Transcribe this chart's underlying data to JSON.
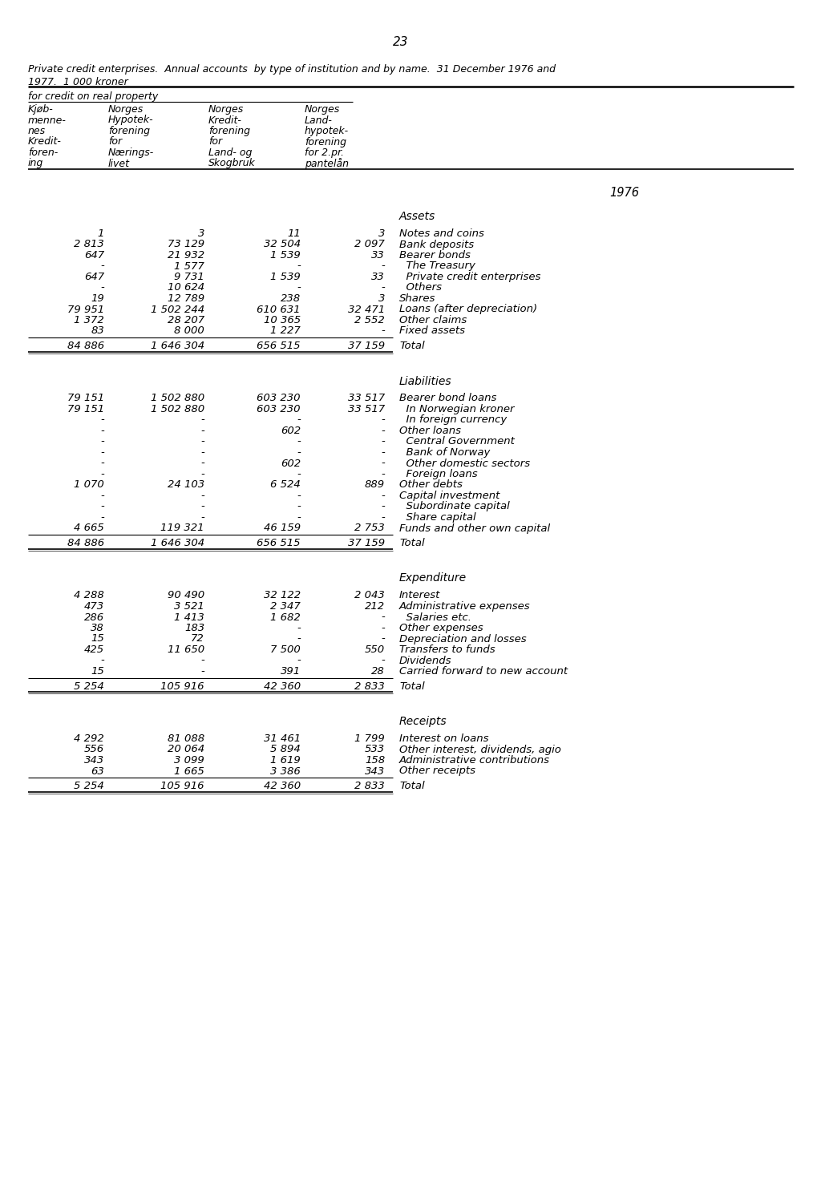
{
  "page_number": "23",
  "title_line1": "Private credit enterprises.  Annual accounts  by type of institution and by name.  31 December 1976 and",
  "title_line2": "1977.  1 000 kroner",
  "section_header": "for credit on real property",
  "col_headers": [
    [
      "Kjøb-",
      "Norges",
      "Norges",
      "Norges"
    ],
    [
      "menne-",
      "Hypotek-",
      "Kredit-",
      "Land-"
    ],
    [
      "nes",
      "forening",
      "forening",
      "hypotek-"
    ],
    [
      "Kredit-",
      "for",
      "for",
      "forening"
    ],
    [
      "foren-",
      "Nærings-",
      "Land- og",
      "for 2.pr."
    ],
    [
      "ing",
      "livet",
      "Skogbruk",
      "pantelån"
    ]
  ],
  "year_label": "1976",
  "sections": [
    {
      "title": "Assets",
      "rows": [
        {
          "cols": [
            "1",
            "3",
            "11",
            "3"
          ],
          "label": "Notes and coins"
        },
        {
          "cols": [
            "2 813",
            "73 129",
            "32 504",
            "2 097"
          ],
          "label": "Bank deposits"
        },
        {
          "cols": [
            "647",
            "21 932",
            "1 539",
            "33"
          ],
          "label": "Bearer bonds"
        },
        {
          "cols": [
            "-",
            "1 577",
            "-",
            "-"
          ],
          "label": "  The Treasury"
        },
        {
          "cols": [
            "647",
            "9 731",
            "1 539",
            "33"
          ],
          "label": "  Private credit enterprises"
        },
        {
          "cols": [
            "-",
            "10 624",
            "-",
            "-"
          ],
          "label": "  Others"
        },
        {
          "cols": [
            "19",
            "12 789",
            "238",
            "3"
          ],
          "label": "Shares"
        },
        {
          "cols": [
            "79 951",
            "1 502 244",
            "610 631",
            "32 471"
          ],
          "label": "Loans (after depreciation)"
        },
        {
          "cols": [
            "1 372",
            "28 207",
            "10 365",
            "2 552"
          ],
          "label": "Other claims"
        },
        {
          "cols": [
            "83",
            "8 000",
            "1 227",
            "-"
          ],
          "label": "Fixed assets"
        }
      ],
      "total": {
        "cols": [
          "84 886",
          "1 646 304",
          "656 515",
          "37 159"
        ],
        "label": "Total"
      }
    },
    {
      "title": "Liabilities",
      "rows": [
        {
          "cols": [
            "79 151",
            "1 502 880",
            "603 230",
            "33 517"
          ],
          "label": "Bearer bond loans"
        },
        {
          "cols": [
            "79 151",
            "1 502 880",
            "603 230",
            "33 517"
          ],
          "label": "  In Norwegian kroner"
        },
        {
          "cols": [
            "-",
            "-",
            "-",
            "-"
          ],
          "label": "  In foreign currency"
        },
        {
          "cols": [
            "-",
            "-",
            "602",
            "-"
          ],
          "label": "Other loans"
        },
        {
          "cols": [
            "-",
            "-",
            "-",
            "-"
          ],
          "label": "  Central Government"
        },
        {
          "cols": [
            "-",
            "-",
            "-",
            "-"
          ],
          "label": "  Bank of Norway"
        },
        {
          "cols": [
            "-",
            "-",
            "602",
            "-"
          ],
          "label": "  Other domestic sectors"
        },
        {
          "cols": [
            "-",
            "-",
            "-",
            "-"
          ],
          "label": "  Foreign loans"
        },
        {
          "cols": [
            "1 070",
            "24 103",
            "6 524",
            "889"
          ],
          "label": "Other debts"
        },
        {
          "cols": [
            "-",
            "-",
            "-",
            "-"
          ],
          "label": "Capital investment"
        },
        {
          "cols": [
            "-",
            "-",
            "-",
            "-"
          ],
          "label": "  Subordinate capital"
        },
        {
          "cols": [
            "-",
            "-",
            "-",
            "-"
          ],
          "label": "  Share capital"
        },
        {
          "cols": [
            "4 665",
            "119 321",
            "46 159",
            "2 753"
          ],
          "label": "Funds and other own capital"
        }
      ],
      "total": {
        "cols": [
          "84 886",
          "1 646 304",
          "656 515",
          "37 159"
        ],
        "label": "Total"
      }
    },
    {
      "title": "Expenditure",
      "rows": [
        {
          "cols": [
            "4 288",
            "90 490",
            "32 122",
            "2 043"
          ],
          "label": "Interest"
        },
        {
          "cols": [
            "473",
            "3 521",
            "2 347",
            "212"
          ],
          "label": "Administrative expenses"
        },
        {
          "cols": [
            "286",
            "1 413",
            "1 682",
            "-"
          ],
          "label": "  Salaries etc."
        },
        {
          "cols": [
            "38",
            "183",
            "-",
            "-"
          ],
          "label": "Other expenses"
        },
        {
          "cols": [
            "15",
            "72",
            "-",
            "-"
          ],
          "label": "Depreciation and losses"
        },
        {
          "cols": [
            "425",
            "11 650",
            "7 500",
            "550"
          ],
          "label": "Transfers to funds"
        },
        {
          "cols": [
            "-",
            "-",
            "-",
            "-"
          ],
          "label": "Dividends"
        },
        {
          "cols": [
            "15",
            "-",
            "391",
            "28"
          ],
          "label": "Carried forward to new account"
        }
      ],
      "total": {
        "cols": [
          "5 254",
          "105 916",
          "42 360",
          "2 833"
        ],
        "label": "Total"
      }
    },
    {
      "title": "Receipts",
      "rows": [
        {
          "cols": [
            "4 292",
            "81 088",
            "31 461",
            "1 799"
          ],
          "label": "Interest on loans"
        },
        {
          "cols": [
            "556",
            "20 064",
            "5 894",
            "533"
          ],
          "label": "Other interest, dividends, agio"
        },
        {
          "cols": [
            "343",
            "3 099",
            "1 619",
            "158"
          ],
          "label": "Administrative contributions"
        },
        {
          "cols": [
            "63",
            "1 665",
            "3 386",
            "343"
          ],
          "label": "Other receipts"
        }
      ],
      "total": {
        "cols": [
          "5 254",
          "105 916",
          "42 360",
          "2 833"
        ],
        "label": "Total"
      }
    }
  ],
  "bg_color": "#ffffff",
  "text_color": "#000000"
}
